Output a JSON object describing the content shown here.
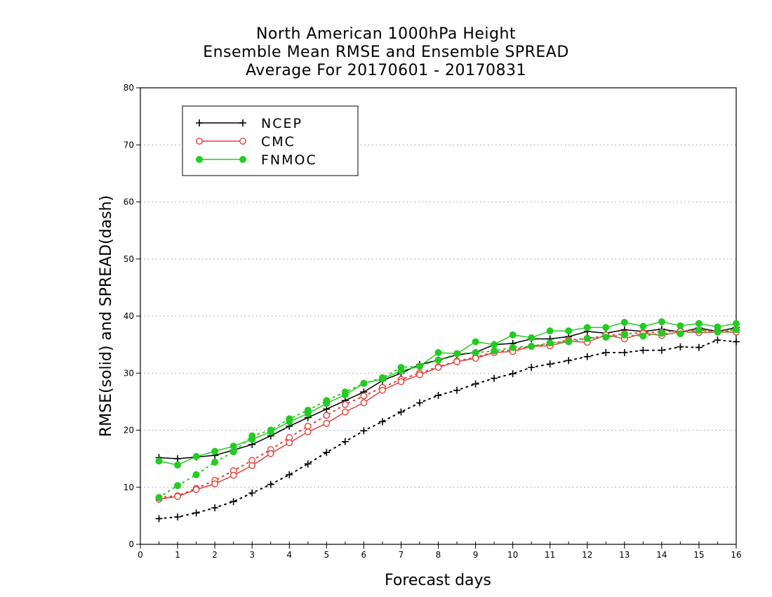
{
  "chart_data": {
    "type": "line",
    "title": [
      "North American 1000hPa Height",
      "Ensemble Mean RMSE and Ensemble SPREAD",
      "Average For 20170601 - 20170831"
    ],
    "xlabel": "Forecast days",
    "ylabel": "RMSE(solid) and SPREAD(dash)",
    "xlim": [
      0,
      16
    ],
    "ylim": [
      0,
      80
    ],
    "xticks": [
      0,
      1,
      2,
      3,
      4,
      5,
      6,
      7,
      8,
      9,
      10,
      11,
      12,
      13,
      14,
      15,
      16
    ],
    "yticks": [
      0,
      10,
      20,
      30,
      40,
      50,
      60,
      70,
      80
    ],
    "grid": true,
    "legend_position": "top-left",
    "x": [
      0.5,
      1,
      1.5,
      2,
      2.5,
      3,
      3.5,
      4,
      4.5,
      5,
      5.5,
      6,
      6.5,
      7,
      7.5,
      8,
      8.5,
      9,
      9.5,
      10,
      10.5,
      11,
      11.5,
      12,
      12.5,
      13,
      13.5,
      14,
      14.5,
      15,
      15.5,
      16
    ],
    "series": [
      {
        "name": "NCEP",
        "color": "#000000",
        "marker": "plus",
        "rmse": [
          15.2,
          15.0,
          15.3,
          15.6,
          16.5,
          17.5,
          19.0,
          20.7,
          22.2,
          23.7,
          25.2,
          26.7,
          28.7,
          30.0,
          31.5,
          32.3,
          33.2,
          33.6,
          35.0,
          35.2,
          36.0,
          36.0,
          36.4,
          37.3,
          37.0,
          37.6,
          37.3,
          37.7,
          37.2,
          37.9,
          37.3,
          38.0
        ],
        "spread": [
          4.5,
          4.8,
          5.5,
          6.4,
          7.5,
          9.0,
          10.5,
          12.2,
          14.1,
          16.1,
          18.0,
          19.9,
          21.5,
          23.2,
          24.8,
          26.1,
          27.0,
          28.1,
          29.1,
          29.9,
          31.0,
          31.6,
          32.2,
          32.9,
          33.6,
          33.6,
          34.0,
          34.0,
          34.6,
          34.5,
          35.8,
          35.5
        ]
      },
      {
        "name": "CMC",
        "color": "#e0413a",
        "marker": "open-circle",
        "rmse": [
          7.9,
          8.4,
          9.6,
          10.6,
          12.1,
          13.8,
          15.9,
          17.8,
          19.7,
          21.2,
          23.2,
          24.8,
          27.0,
          28.5,
          29.7,
          31.0,
          32.0,
          32.6,
          33.6,
          33.8,
          34.7,
          34.8,
          35.6,
          35.4,
          36.7,
          36.0,
          37.0,
          36.6,
          37.3,
          37.1,
          37.2,
          37.2
        ],
        "spread": [
          8.2,
          8.5,
          9.8,
          11.2,
          12.9,
          14.7,
          16.6,
          18.7,
          20.7,
          22.6,
          24.5,
          26.0,
          27.5,
          28.9,
          30.0,
          31.1,
          32.1,
          32.8,
          33.7,
          34.1,
          34.7,
          35.1,
          35.8,
          36.1,
          36.5,
          36.9,
          37.1,
          37.2,
          37.4,
          37.5,
          37.4,
          37.6
        ]
      },
      {
        "name": "FNMOC",
        "color": "#22cc22",
        "marker": "filled-circle",
        "rmse": [
          14.6,
          13.9,
          15.4,
          16.3,
          17.2,
          18.4,
          19.7,
          21.5,
          22.9,
          24.7,
          26.2,
          28.2,
          29.0,
          30.4,
          31.2,
          33.6,
          33.4,
          35.5,
          35.0,
          36.7,
          36.2,
          37.4,
          37.4,
          38.0,
          38.0,
          38.9,
          38.2,
          39.0,
          38.3,
          38.7,
          38.1,
          38.7
        ],
        "spread": [
          8.2,
          10.3,
          12.2,
          14.4,
          16.2,
          19.0,
          20.0,
          22.0,
          23.5,
          25.2,
          26.7,
          28.2,
          29.2,
          31.0,
          31.2,
          32.3,
          33.4,
          33.6,
          33.9,
          34.5,
          34.7,
          35.3,
          35.5,
          36.1,
          36.3,
          36.7,
          36.5,
          37.0,
          36.9,
          37.5,
          37.2,
          37.6
        ]
      }
    ]
  }
}
